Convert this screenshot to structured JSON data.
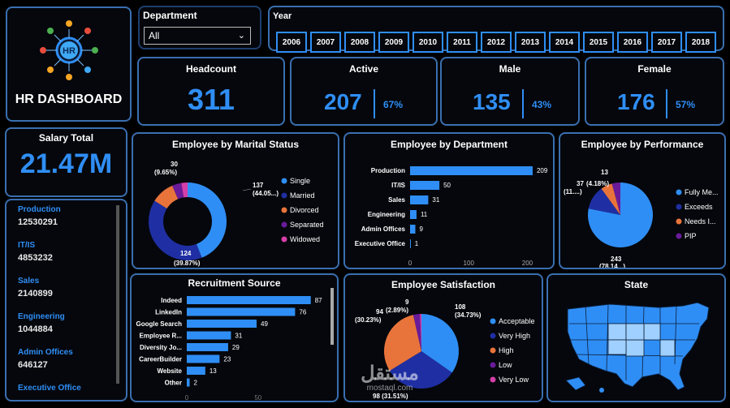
{
  "dashboard": {
    "title": "HR DASHBOARD",
    "logo_text": "HR"
  },
  "filters": {
    "department_label": "Department",
    "department_value": "All",
    "year_label": "Year",
    "years": [
      "2006",
      "2007",
      "2008",
      "2009",
      "2010",
      "2011",
      "2012",
      "2013",
      "2014",
      "2015",
      "2016",
      "2017",
      "2018"
    ]
  },
  "kpis": {
    "headcount": {
      "label": "Headcount",
      "value": "311"
    },
    "active": {
      "label": "Active",
      "value": "207",
      "pct": "67%"
    },
    "male": {
      "label": "Male",
      "value": "135",
      "pct": "43%"
    },
    "female": {
      "label": "Female",
      "value": "176",
      "pct": "57%"
    }
  },
  "salary": {
    "label": "Salary Total",
    "value": "21.47M",
    "items": [
      {
        "dept": "Production",
        "value": "12530291"
      },
      {
        "dept": "IT/IS",
        "value": "4853232"
      },
      {
        "dept": "Sales",
        "value": "2140899"
      },
      {
        "dept": "Engineering",
        "value": "1044884"
      },
      {
        "dept": "Admin Offices",
        "value": "646127"
      },
      {
        "dept": "Executive Office",
        "value": ""
      }
    ]
  },
  "colors": {
    "accent": "#2f8ef5",
    "dark_blue": "#1f2fa3",
    "orange": "#e8743b",
    "purple": "#6a1b9a",
    "pink": "#d43fa8",
    "border": "#3a6fb0"
  },
  "chart_data": [
    {
      "id": "marital",
      "type": "pie",
      "title": "Employee by Marital Status",
      "categories": [
        "Single",
        "Married",
        "Divorced",
        "Separated",
        "Widowed"
      ],
      "values": [
        137,
        124,
        30,
        12,
        8
      ],
      "labels": [
        "137 (44.05...)",
        "124 (39.87%)",
        "30 (9.65%)"
      ],
      "donut": true
    },
    {
      "id": "department",
      "type": "bar",
      "title": "Employee by Department",
      "categories": [
        "Production",
        "IT/IS",
        "Sales",
        "Engineering",
        "Admin Offices",
        "Executive Office"
      ],
      "values": [
        209,
        50,
        31,
        11,
        9,
        1
      ],
      "xlim": [
        0,
        210
      ],
      "xticks": [
        "0",
        "100",
        "200"
      ]
    },
    {
      "id": "performance",
      "type": "pie",
      "title": "Employee by Performance",
      "categories": [
        "Fully Me...",
        "Exceeds",
        "Needs I...",
        "PIP"
      ],
      "values": [
        243,
        37,
        18,
        13
      ],
      "labels": [
        "243 (78.14...)",
        "37 (11....)",
        "(4.18%)",
        "13"
      ]
    },
    {
      "id": "recruitment",
      "type": "bar",
      "title": "Recruitment Source",
      "categories": [
        "Indeed",
        "LinkedIn",
        "Google Search",
        "Employee R...",
        "Diversity Jo...",
        "CareerBuilder",
        "Website",
        "Other"
      ],
      "values": [
        87,
        76,
        49,
        31,
        29,
        23,
        13,
        2
      ],
      "xlim": [
        0,
        90
      ],
      "xticks": [
        "0",
        "50"
      ]
    },
    {
      "id": "satisfaction",
      "type": "pie",
      "title": "Employee Satisfaction",
      "categories": [
        "Acceptable",
        "Very High",
        "High",
        "Low",
        "Very Low"
      ],
      "values": [
        108,
        98,
        94,
        9,
        2
      ],
      "labels": [
        "108 (34.73%)",
        "98 (31.51%)",
        "94 (30.23%)",
        "9 (2.89%)"
      ]
    }
  ],
  "map": {
    "title": "State",
    "watermark": "مستقل",
    "watermark_sub": "mostaql.com"
  }
}
